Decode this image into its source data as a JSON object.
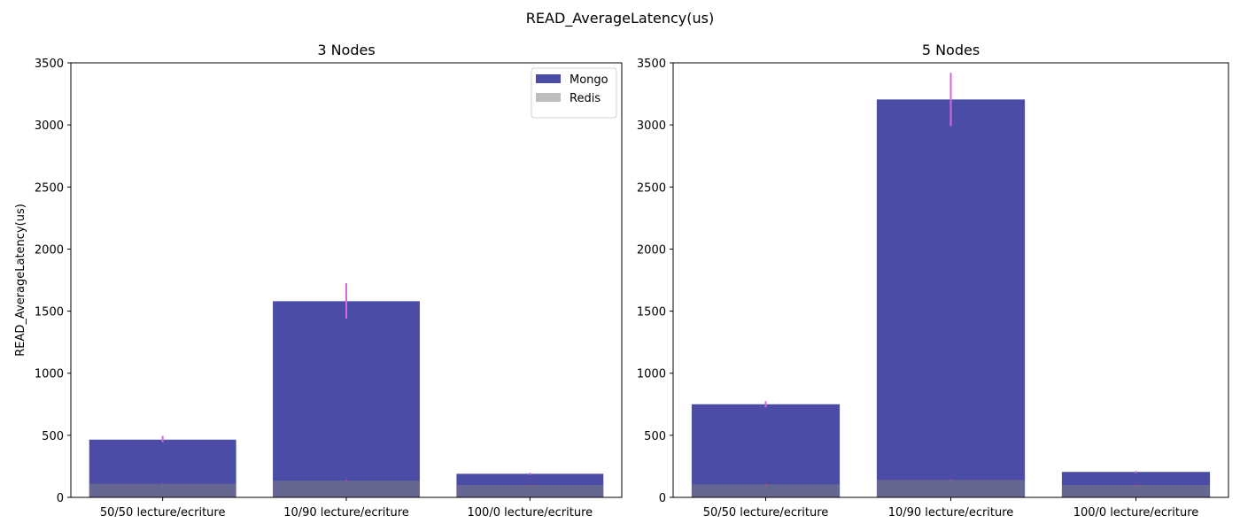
{
  "figure_title": "READ_AverageLatency(us)",
  "colors": {
    "mongo": "#4b4ca5",
    "redis": "#7f7f7f",
    "redis_overlay": "#bdbdbd",
    "error_mongo": "#d36ad6",
    "error_redis": "#c14d6e",
    "axis": "#000000"
  },
  "chart_data": [
    {
      "type": "bar",
      "title": "3 Nodes",
      "xlabel": "",
      "ylabel": "READ_AverageLatency(us)",
      "ylim": [
        0,
        3500
      ],
      "yticks": [
        0,
        500,
        1000,
        1500,
        2000,
        2500,
        3000,
        3500
      ],
      "categories": [
        "50/50 lecture/ecriture",
        "10/90 lecture/ecriture",
        "100/0 lecture/ecriture"
      ],
      "legend": "top-right",
      "series": [
        {
          "name": "Mongo",
          "values": [
            465,
            1580,
            190
          ],
          "error_low": [
            445,
            1440,
            180
          ],
          "error_high": [
            495,
            1725,
            198
          ]
        },
        {
          "name": "Redis",
          "values": [
            110,
            135,
            100
          ],
          "error_low": [
            104,
            128,
            96
          ],
          "error_high": [
            116,
            142,
            104
          ]
        }
      ]
    },
    {
      "type": "bar",
      "title": "5 Nodes",
      "xlabel": "",
      "ylabel": "",
      "ylim": [
        0,
        3500
      ],
      "yticks": [
        0,
        500,
        1000,
        1500,
        2000,
        2500,
        3000,
        3500
      ],
      "categories": [
        "50/50 lecture/ecriture",
        "10/90 lecture/ecriture",
        "100/0 lecture/ecriture"
      ],
      "legend": "",
      "series": [
        {
          "name": "Mongo",
          "values": [
            750,
            3205,
            205
          ],
          "error_low": [
            725,
            2990,
            196
          ],
          "error_high": [
            775,
            3420,
            212
          ]
        },
        {
          "name": "Redis",
          "values": [
            105,
            140,
            100
          ],
          "error_low": [
            99,
            133,
            95
          ],
          "error_high": [
            111,
            147,
            105
          ]
        }
      ]
    }
  ]
}
